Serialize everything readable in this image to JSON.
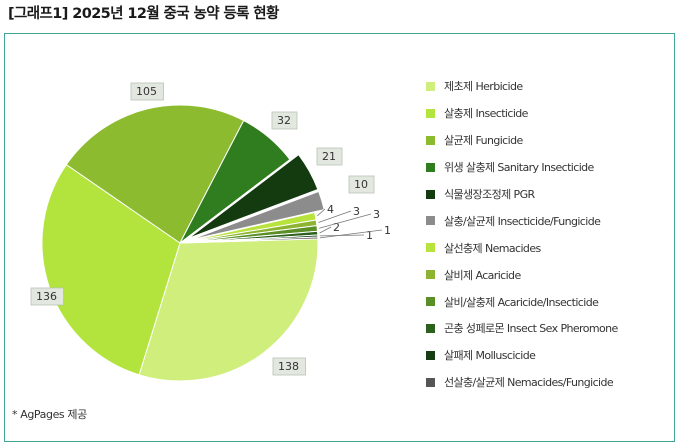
{
  "title": "[그래프1] 2025년 12월 중국 농약 등록 현황",
  "source": "* AgPages 제공",
  "chart_data": {
    "type": "pie",
    "title": "[그래프1] 2025년 12월 중국 농약 등록 현황",
    "legend_position": "right",
    "start_angle_deg": 90,
    "direction": "clockwise",
    "series": [
      {
        "name": "제초제 Herbicide",
        "value": 138,
        "color": "#cfee7c",
        "label": "138"
      },
      {
        "name": "살충제 Insecticide",
        "value": 136,
        "color": "#b3e43e",
        "label": "136"
      },
      {
        "name": "살균제 Fungicide",
        "value": 105,
        "color": "#8cbb30",
        "label": "105"
      },
      {
        "name": "위생 살충제 Sanitary Insecticide",
        "value": 32,
        "color": "#2f7d1e",
        "label": "32"
      },
      {
        "name": "식물생장조정제 PGR",
        "value": 21,
        "color": "#143b10",
        "label": "21",
        "exploded": true
      },
      {
        "name": "살충/살균제 Insecticide/Fungicide",
        "value": 10,
        "color": "#8c8c8c",
        "label": "10",
        "exploded": true
      },
      {
        "name": "살선충제 Nemacides",
        "value": 4,
        "color": "#b8e23c",
        "label": "4"
      },
      {
        "name": "살비제 Acaricide",
        "value": 3,
        "color": "#8db431",
        "label": "3"
      },
      {
        "name": "살비/살충제 Acaricide/Insecticide",
        "value": 3,
        "color": "#5a8e26",
        "label": "3"
      },
      {
        "name": "곤충 성페로몬 Insect Sex Pheromone",
        "value": 2,
        "color": "#2b611c",
        "label": "2"
      },
      {
        "name": "살패제 Molluscicide",
        "value": 1,
        "color": "#173d12",
        "label": "1"
      },
      {
        "name": "선살충/살균제 Nemacides/Fungicide",
        "value": 1,
        "color": "#555555",
        "label": "1"
      }
    ]
  }
}
